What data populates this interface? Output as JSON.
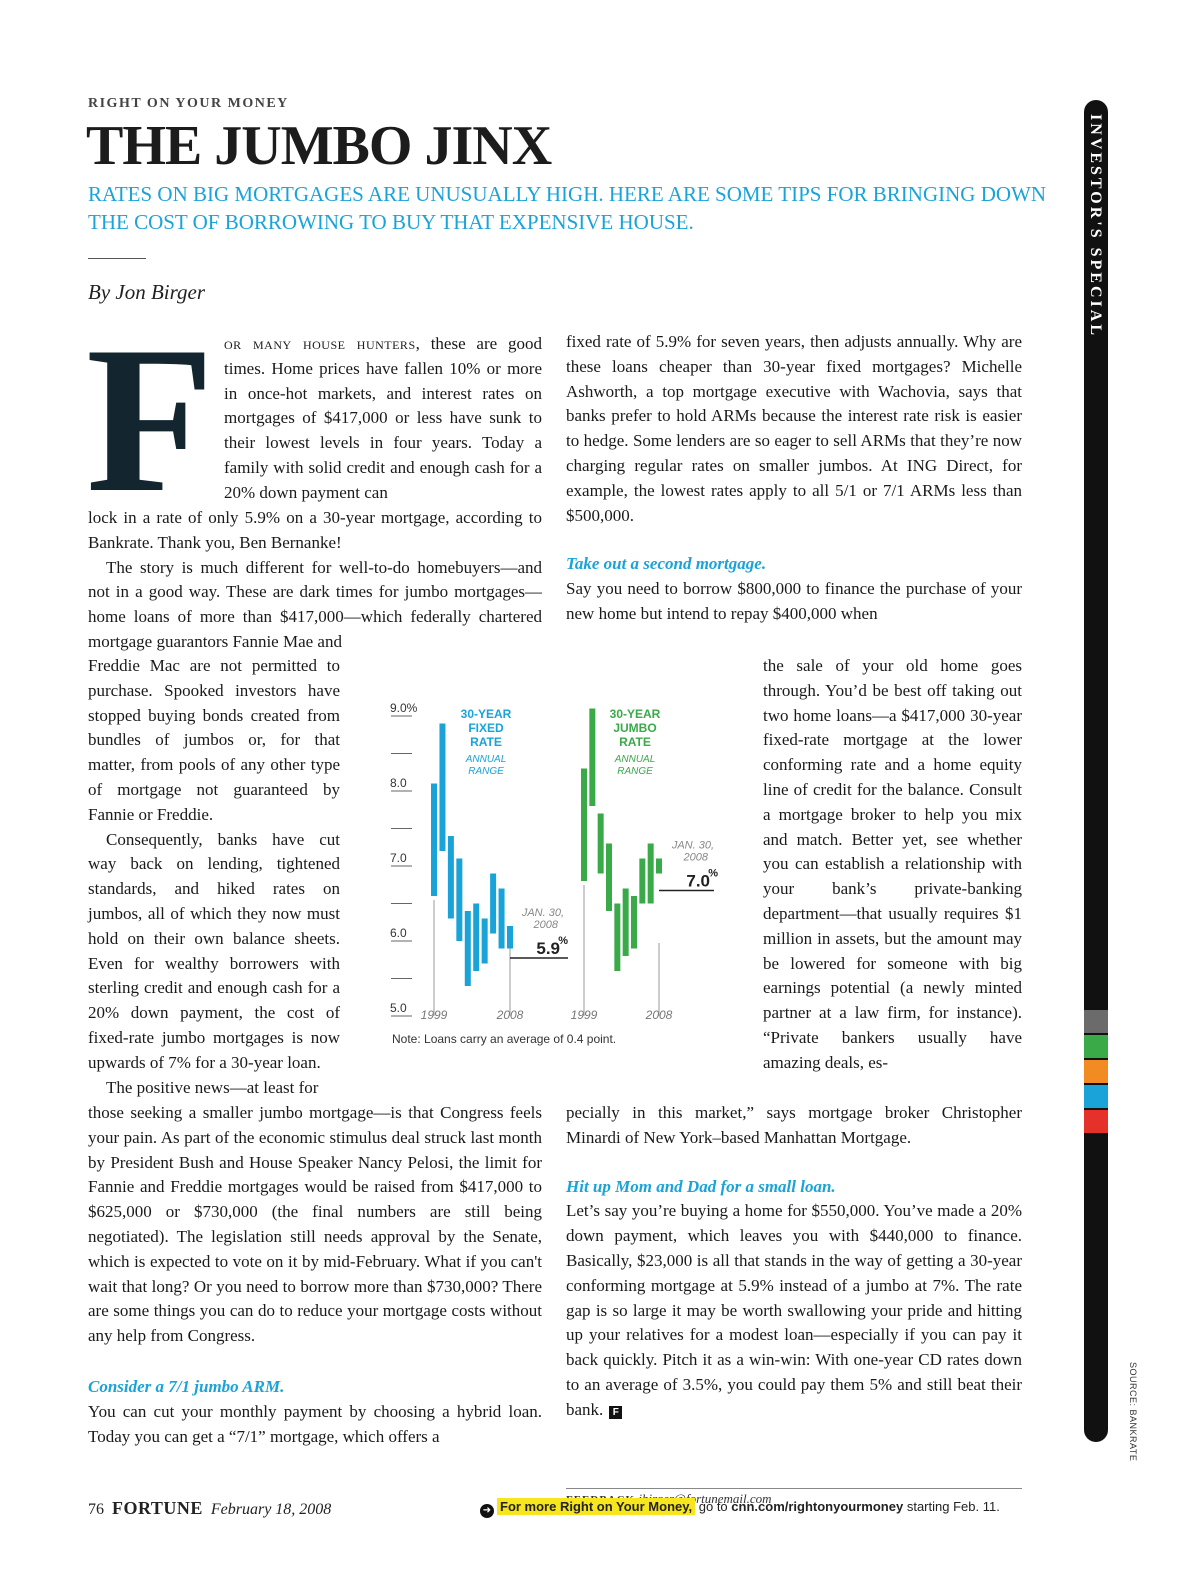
{
  "header": {
    "kicker": "RIGHT ON YOUR MONEY",
    "title": "THE JUMBO JINX",
    "dek": "RATES ON BIG MORTGAGES ARE UNUSUALLY HIGH. HERE ARE SOME TIPS FOR BRINGING DOWN THE COST OF BORROWING TO BUY THAT EXPENSIVE HOUSE.",
    "byline": "By Jon Birger"
  },
  "article": {
    "dropcap": "F",
    "lead_smallcaps": "or many house hunters",
    "p1_a": ", these are good times. Home prices have fallen 10% or more in once-hot markets, and interest rates on mortgages of $417,000 or less have sunk to their lowest levels in four years. Today a family with solid credit and enough cash for a 20% down payment can",
    "p1_b": "lock in a rate of only 5.9% on a 30-year mortgage, according to Bankrate. Thank you, Ben Bernanke!",
    "p2_a": "The story is much different for well-to-do homebuyers—and not in a good way. These are dark times for jumbo mortgages—home loans of more than $417,000—which federally chartered mortgage guarantors Fannie Mae and",
    "p2_b": "Freddie Mac are not permitted to purchase. Spooked investors have stopped buying bonds created from bundles of jumbos or, for that matter, from pools of any other type of mortgage not guaranteed by Fannie or Freddie.",
    "p3": "Consequently, banks have cut way back on lending, tightened standards, and hiked rates on jumbos, all of which they now must hold on their own balance sheets. Even for wealthy borrowers with sterling credit and enough cash for a 20% down payment, the cost of fixed-rate jumbo mortgages is now upwards of 7% for a 30-year loan.",
    "p4_a": "The positive news—at least for",
    "p4_b": "those seeking a smaller jumbo mortgage—is that Congress feels your pain. As part of the economic stimulus deal struck last month by President Bush and House Speaker Nancy Pelosi, the limit for Fannie and Freddie mortgages would be raised from $417,000 to $625,000 or $730,000 (the final numbers are still being negotiated). The legislation still needs approval by the Senate, which is expected to vote on it by mid-February. What if you can't wait that long? Or you need to borrow more than $730,000? There are some things you can do to reduce your mortgage costs without any help from Congress.",
    "h1": "Consider a 7/1 jumbo ARM.",
    "p5": "You can cut your monthly payment by choosing a hybrid loan. Today you can get a “7/1” mortgage, which offers a",
    "p6": "fixed rate of 5.9% for seven years, then adjusts annually. Why are these loans cheaper than 30-year fixed mortgages? Michelle Ashworth, a top mortgage executive with Wachovia, says that banks prefer to hold ARMs because the interest rate risk is easier to hedge. Some lenders are so eager to sell ARMs that they’re now charging regular rates on smaller jumbos. At ING Direct, for example, the lowest rates apply to all 5/1 or 7/1 ARMs less than $500,000.",
    "h2": "Take out a second mortgage.",
    "p7_a": "Say you need to borrow $800,000 to finance the purchase of your new home but intend to repay $400,000 when",
    "p7_b": "the sale of your old home goes through. You’d be best off taking out two home loans—a $417,000 30-year fixed-rate mortgage at the lower conforming rate and a home equity line of credit for the balance. Consult a mortgage broker to help you mix and match. Better yet, see whether you can establish a relationship with your bank’s private-banking department—that usually requires $1 million in assets, but the amount may be lowered for someone with big earnings potential (a newly minted partner at a law firm, for instance). “Private bankers usually have amazing deals, es-",
    "p7_c": "pecially in this market,” says mortgage broker Christopher Minardi of New York–based Manhattan Mortgage.",
    "h3": "Hit up Mom and Dad for a small loan.",
    "p8": "Let’s say you’re buying a home for $550,000. You’ve made a 20% down payment, which leaves you with $440,000 to finance. Basically, $23,000 is all that stands in the way of getting a 30-year conforming mortgage at 5.9% instead of a jumbo at 7%. The rate gap is so large it may be worth swallowing your pride and hitting up your relatives for a modest loan—especially if you can pay it back quickly. Pitch it as a win-win: With one-year CD rates down to an average of 3.5%, you could pay them 5% and still beat their bank.",
    "endmark": "F",
    "feedback_label": "FEEDBACK",
    "feedback_email": "jbirger@fortunemail.com"
  },
  "chart_data": {
    "type": "range-bar",
    "y_ticks": [
      "9.0%",
      "8.0",
      "7.0",
      "6.0",
      "5.0"
    ],
    "ylim": [
      5.0,
      9.0
    ],
    "series": [
      {
        "name": "30-YEAR FIXED RATE",
        "subtitle": "ANNUAL RANGE",
        "color": "#1aa3d9",
        "x_start": "1999",
        "x_end": "2008",
        "ranges": [
          [
            6.6,
            8.1
          ],
          [
            7.2,
            8.9
          ],
          [
            6.3,
            7.4
          ],
          [
            6.0,
            7.1
          ],
          [
            5.4,
            6.4
          ],
          [
            5.6,
            6.5
          ],
          [
            5.7,
            6.3
          ],
          [
            6.1,
            6.9
          ],
          [
            5.9,
            6.7
          ],
          [
            5.9,
            6.2
          ]
        ],
        "callout_date": "JAN. 30, 2008",
        "callout_value": "5.9"
      },
      {
        "name": "30-YEAR JUMBO RATE",
        "subtitle": "ANNUAL RANGE",
        "color": "#3aaa49",
        "x_start": "1999",
        "x_end": "2008",
        "ranges": [
          [
            6.8,
            8.3
          ],
          [
            7.8,
            9.1
          ],
          [
            6.9,
            7.7
          ],
          [
            6.4,
            7.3
          ],
          [
            5.6,
            6.5
          ],
          [
            5.8,
            6.7
          ],
          [
            5.9,
            6.6
          ],
          [
            6.5,
            7.1
          ],
          [
            6.5,
            7.3
          ],
          [
            6.9,
            7.1
          ]
        ],
        "callout_date": "JAN. 30, 2008",
        "callout_value": "7.0"
      }
    ],
    "note": "Note: Loans carry an average of 0.4 point."
  },
  "sidebar": {
    "label": "INVESTOR'S SPECIAL",
    "swatches": [
      "#6b6b6b",
      "#3aaa49",
      "#f28b22",
      "#1aa3d9",
      "#e4322b"
    ]
  },
  "source": "SOURCE: BANKRATE",
  "footer": {
    "page_number": "76",
    "brand": "FORTUNE",
    "date": "February 18, 2008",
    "promo": "For more Right on Your Money,",
    "go_to": "go to",
    "url": "cnn.com/rightonyourmoney",
    "starting": "starting Feb. 11."
  }
}
